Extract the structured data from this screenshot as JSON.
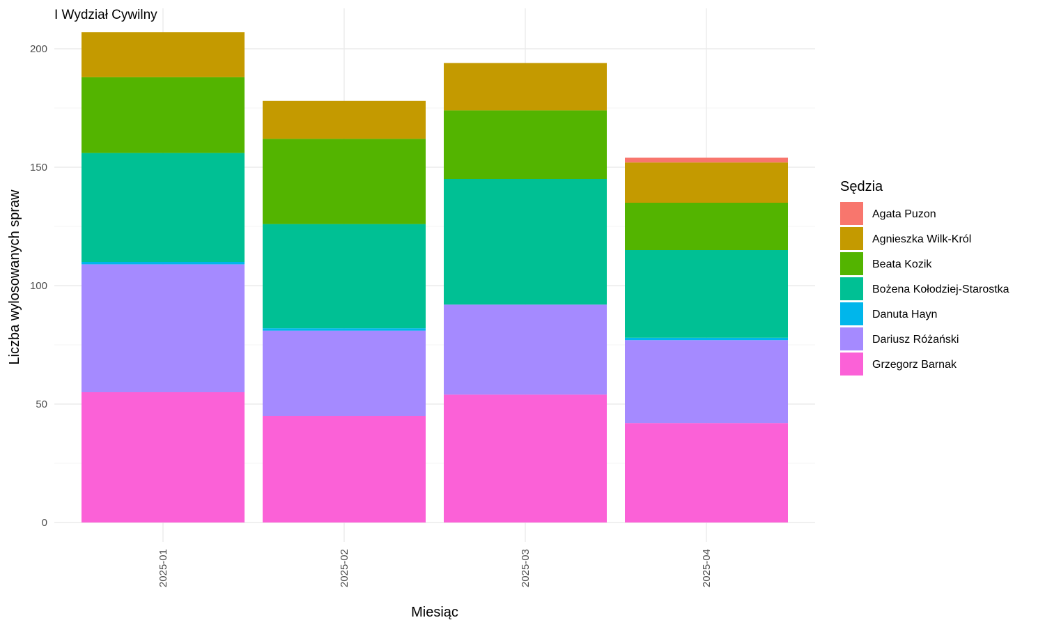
{
  "chart_data": {
    "type": "bar",
    "stacked": true,
    "title": "I Wydział Cywilny",
    "xlabel": "Miesiąc",
    "ylabel": "Liczba wylosowanych spraw",
    "categories": [
      "2025-01",
      "2025-02",
      "2025-03",
      "2025-04"
    ],
    "ylim": [
      0,
      210
    ],
    "yticks": [
      0,
      50,
      100,
      150,
      200
    ],
    "grid": true,
    "legend": {
      "title": "Sędzia",
      "position": "right"
    },
    "series": [
      {
        "name": "Grzegorz Barnak",
        "color": "#FB61D7",
        "values": [
          55,
          45,
          54,
          42
        ]
      },
      {
        "name": "Dariusz Różański",
        "color": "#A58AFF",
        "values": [
          54,
          36,
          38,
          35
        ]
      },
      {
        "name": "Danuta Hayn",
        "color": "#00B6EB",
        "values": [
          1,
          1,
          0,
          1
        ]
      },
      {
        "name": "Bożena Kołodziej-Starostka",
        "color": "#00C094",
        "values": [
          46,
          44,
          53,
          37
        ]
      },
      {
        "name": "Beata Kozik",
        "color": "#53B400",
        "values": [
          32,
          36,
          29,
          20
        ]
      },
      {
        "name": "Agnieszka Wilk-Król",
        "color": "#C49A00",
        "values": [
          19,
          16,
          20,
          17
        ]
      },
      {
        "name": "Agata Puzon",
        "color": "#F8766D",
        "values": [
          0,
          0,
          0,
          2
        ]
      }
    ],
    "legend_order": [
      "Agata Puzon",
      "Agnieszka Wilk-Król",
      "Beata Kozik",
      "Bożena Kołodziej-Starostka",
      "Danuta Hayn",
      "Dariusz Różański",
      "Grzegorz Barnak"
    ]
  }
}
